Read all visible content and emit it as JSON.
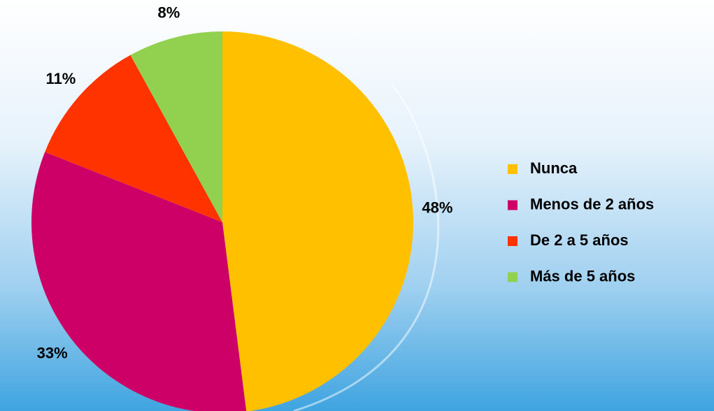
{
  "chart_data": {
    "type": "pie",
    "categories": [
      "Nunca",
      "Menos de 2 años",
      "De 2 a 5 años",
      "Más de 5 años"
    ],
    "values": [
      48,
      33,
      11,
      8
    ],
    "value_labels": [
      "48%",
      "33%",
      "11%",
      "8%"
    ],
    "colors": [
      "#FFC000",
      "#CC0066",
      "#FF3300",
      "#92D050"
    ],
    "legend": "right"
  }
}
